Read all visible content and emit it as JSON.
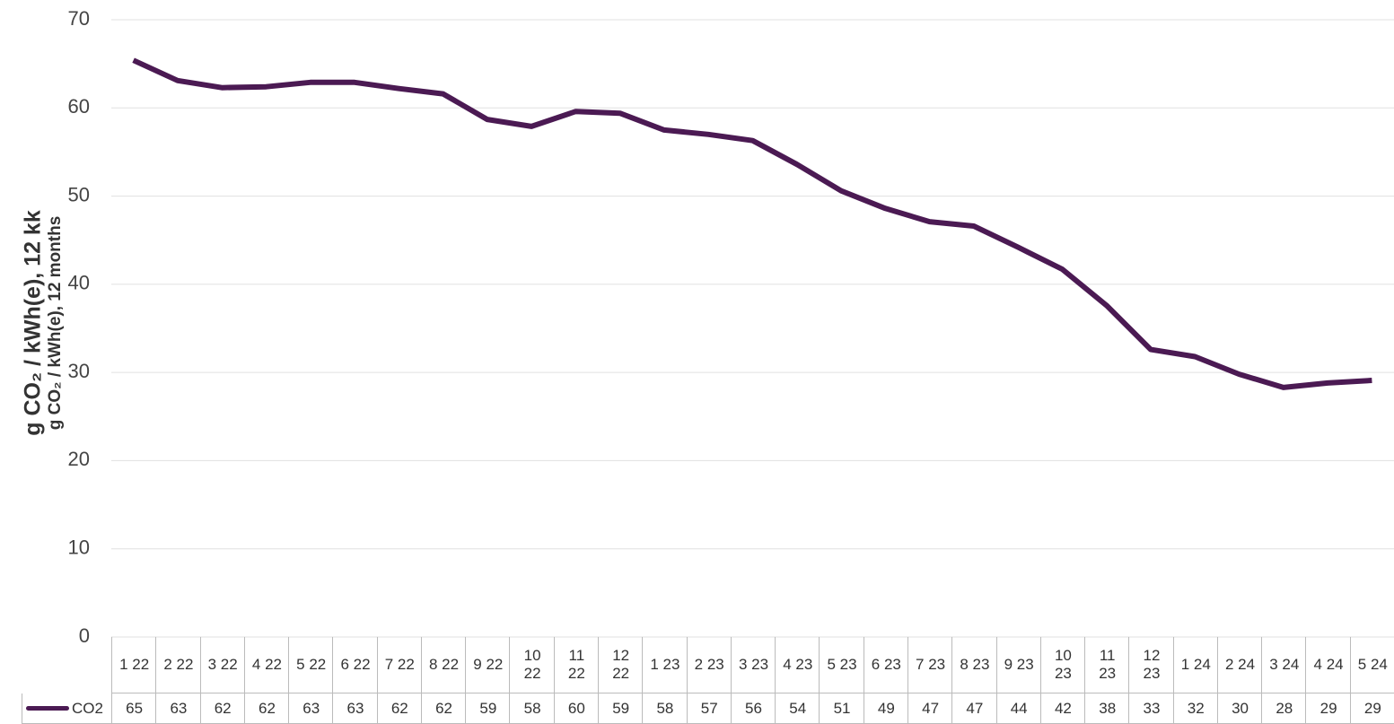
{
  "chart_data": {
    "type": "line",
    "y_axis_title": "g CO₂ / kWh(e), 12 kk",
    "y_axis_subtitle": "g CO₂ / kWh(e), 12 months",
    "categories": [
      "1 22",
      "2 22",
      "3 22",
      "4 22",
      "5 22",
      "6 22",
      "7 22",
      "8 22",
      "9 22",
      "10 22",
      "11 22",
      "12 22",
      "1 23",
      "2 23",
      "3 23",
      "4 23",
      "5 23",
      "6 23",
      "7 23",
      "8 23",
      "9 23",
      "10 23",
      "11 23",
      "12 23",
      "1 24",
      "2 24",
      "3 24",
      "4 24",
      "5 24"
    ],
    "series": [
      {
        "name": "CO2",
        "color": "#4b1a53",
        "values": [
          65.4,
          63.1,
          62.3,
          62.4,
          62.9,
          62.9,
          62.2,
          61.6,
          58.7,
          57.9,
          59.6,
          59.4,
          57.5,
          57.0,
          56.3,
          53.6,
          50.6,
          48.6,
          47.1,
          46.6,
          44.2,
          41.7,
          37.6,
          32.6,
          31.8,
          29.8,
          28.3,
          28.8,
          29.1
        ],
        "value_labels": [
          "65",
          "63",
          "62",
          "62",
          "63",
          "63",
          "62",
          "62",
          "59",
          "58",
          "60",
          "59",
          "58",
          "57",
          "56",
          "54",
          "51",
          "49",
          "47",
          "47",
          "44",
          "42",
          "38",
          "33",
          "32",
          "30",
          "28",
          "29",
          "29"
        ]
      }
    ],
    "ylim": [
      0,
      70
    ],
    "yticks": [
      0,
      10,
      20,
      30,
      40,
      50,
      60,
      70
    ],
    "grid": true
  }
}
